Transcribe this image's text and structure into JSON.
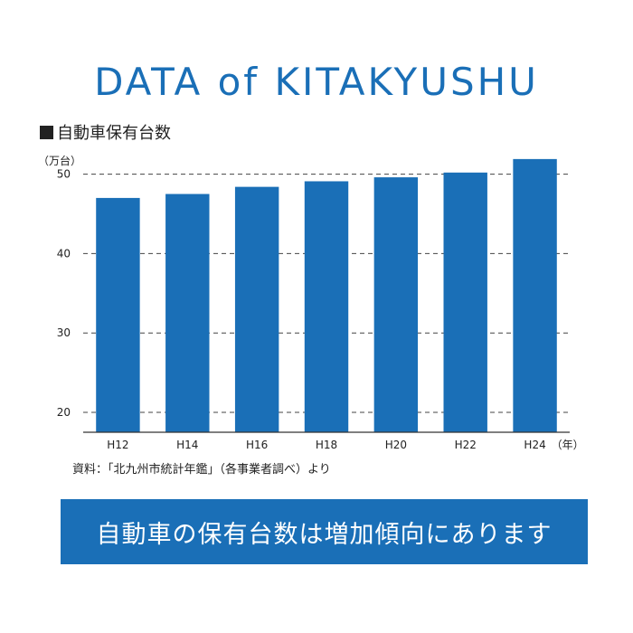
{
  "page": {
    "title": "DATA of KITAKYUSHU",
    "source": "資料：「北九州市統計年鑑」（各事業者調べ）より",
    "banner": "自動車の保有台数は増加傾向にあります"
  },
  "chart_data": {
    "type": "bar",
    "title": "自動車保有台数",
    "ylabel": "（万台）",
    "xunit": "（年）",
    "categories": [
      "H12",
      "H14",
      "H16",
      "H18",
      "H20",
      "H22",
      "H24"
    ],
    "values": [
      47.0,
      47.5,
      48.4,
      49.1,
      49.6,
      50.2,
      51.9
    ],
    "ylim": [
      17.5,
      52
    ],
    "yticks": [
      20,
      30,
      40,
      50
    ],
    "grid": "dashed horizontal",
    "colors": {
      "bar": "#1a6fb7",
      "title": "#1a6fb7",
      "banner": "#1a6fb7"
    }
  }
}
